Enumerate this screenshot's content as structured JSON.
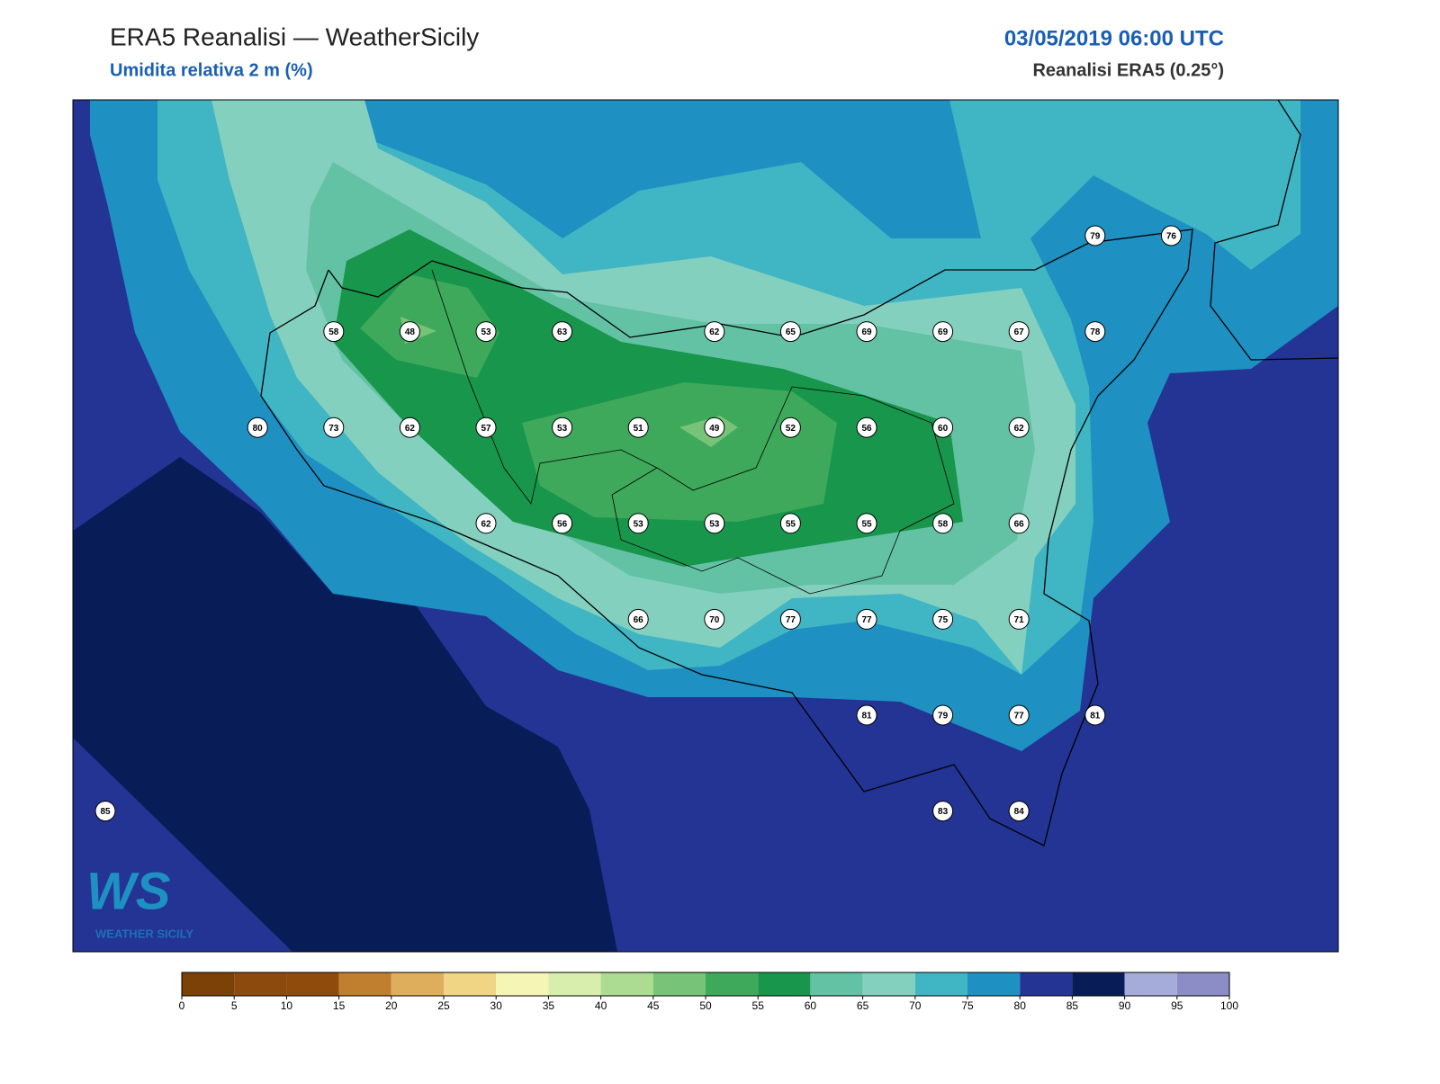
{
  "header": {
    "title": "ERA5 Reanalisi — WeatherSicily",
    "subtitle": "Umidita relativa 2 m (%)",
    "datetime": "03/05/2019 06:00 UTC",
    "source": "Reanalisi ERA5 (0.25°)"
  },
  "stations": {
    "rows": [
      [
        null,
        null,
        null,
        null,
        null,
        null,
        null,
        null,
        null,
        null,
        null,
        null,
        null,
        79,
        76
      ],
      [
        null,
        null,
        null,
        58,
        48,
        53,
        63,
        null,
        62,
        65,
        69,
        69,
        67,
        78,
        null
      ],
      [
        null,
        null,
        80,
        73,
        62,
        57,
        53,
        51,
        49,
        52,
        56,
        60,
        62,
        null,
        null
      ],
      [
        null,
        null,
        null,
        null,
        null,
        62,
        56,
        53,
        53,
        55,
        55,
        58,
        66,
        null,
        null
      ],
      [
        null,
        null,
        null,
        null,
        null,
        null,
        null,
        66,
        70,
        77,
        77,
        75,
        71,
        null,
        null
      ],
      [
        null,
        null,
        null,
        null,
        null,
        null,
        null,
        null,
        null,
        null,
        81,
        79,
        77,
        81,
        null
      ],
      [
        85,
        null,
        null,
        null,
        null,
        null,
        null,
        null,
        null,
        null,
        null,
        83,
        84,
        null,
        null
      ]
    ]
  },
  "colorbar": {
    "ticks": [
      0,
      5,
      10,
      15,
      20,
      25,
      30,
      35,
      40,
      45,
      50,
      55,
      60,
      65,
      70,
      75,
      80,
      85,
      90,
      95,
      100
    ],
    "colors": [
      "#7b4106",
      "#8c4a0c",
      "#8f4b0c",
      "#bf7f2f",
      "#dfae5c",
      "#f0d584",
      "#f5f5b6",
      "#d8eead",
      "#abdc92",
      "#77c378",
      "#3ea95b",
      "#18964c",
      "#63c2a4",
      "#84d0bf",
      "#40b5c4",
      "#1e90c2",
      "#233494",
      "#081d58",
      "#a6acda",
      "#8c8cc6"
    ]
  },
  "logo": {
    "mark": "WS",
    "text": "WEATHER SICILY"
  }
}
